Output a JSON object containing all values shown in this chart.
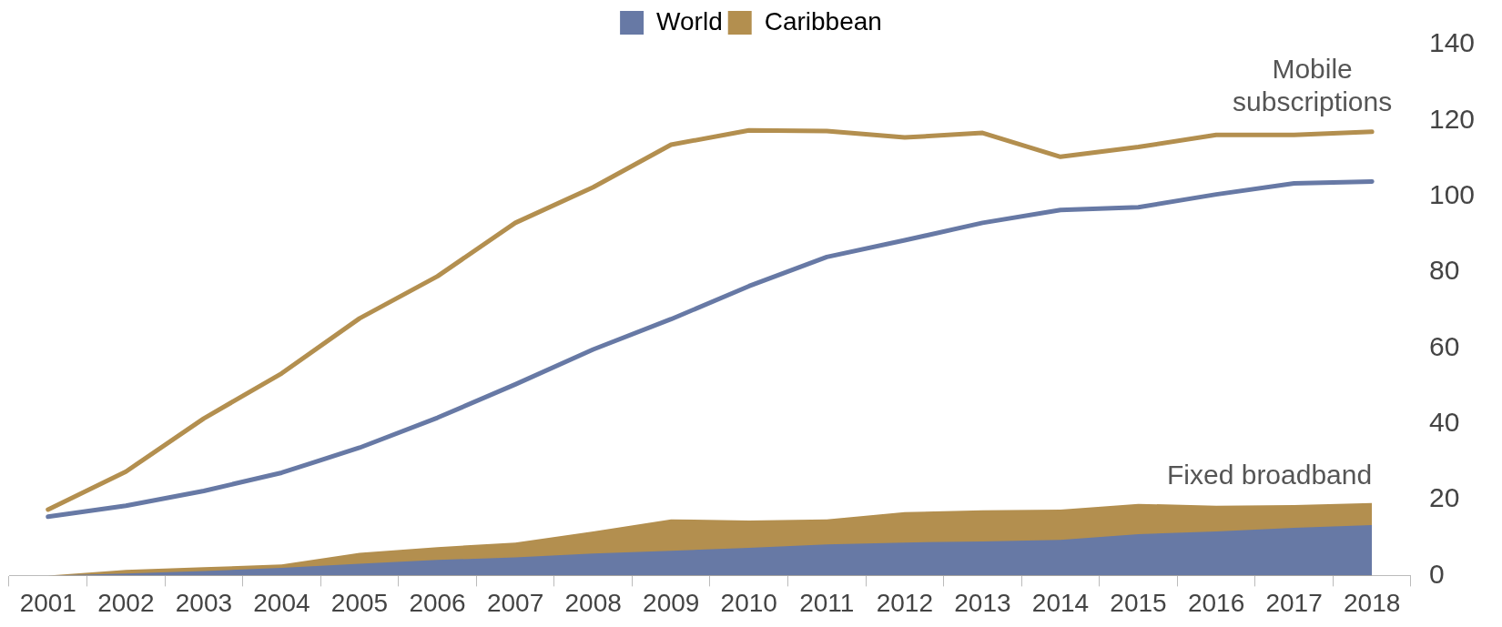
{
  "chart_data": {
    "type": "line",
    "categories": [
      "2001",
      "2002",
      "2003",
      "2004",
      "2005",
      "2006",
      "2007",
      "2008",
      "2009",
      "2010",
      "2011",
      "2012",
      "2013",
      "2014",
      "2015",
      "2016",
      "2017",
      "2018"
    ],
    "series": [
      {
        "name": "World",
        "color": "#6779a5",
        "values": [
          15.5,
          18.4,
          22.3,
          27.1,
          33.7,
          41.6,
          50.4,
          59.6,
          67.6,
          76.3,
          84,
          88.4,
          93,
          96.4,
          97.1,
          100.5,
          103.4,
          103.9
        ]
      },
      {
        "name": "Caribbean",
        "color": "#b38f4f",
        "values": [
          17.4,
          27.4,
          41.4,
          53.3,
          67.8,
          78.9,
          93,
          102.4,
          113.6,
          117.4,
          117.2,
          115.5,
          116.7,
          110.4,
          113,
          116.2,
          116.2,
          117
        ]
      },
      {
        "color": "#6779a5",
        "type": "area",
        "values": [
          0,
          0.5,
          1.2,
          2,
          3.1,
          4.1,
          4.8,
          5.8,
          6.5,
          7.3,
          8.2,
          8.7,
          9,
          9.4,
          10.9,
          11.6,
          12.6,
          13.3
        ]
      },
      {
        "color": "#b38f4f",
        "type": "area",
        "values": [
          0,
          1.5,
          2.2,
          2.9,
          6,
          7.5,
          8.7,
          11.6,
          14.8,
          14.5,
          14.8,
          16.7,
          17.2,
          17.4,
          18.9,
          18.4,
          18.6,
          19.1
        ]
      }
    ],
    "ylim": [
      0,
      140
    ],
    "yticks": [
      0,
      20,
      40,
      60,
      80,
      100,
      120,
      140
    ],
    "grid": false,
    "legend": "top",
    "marker": "none",
    "line_style": "solid",
    "annotations": [
      "Mobile subscriptions",
      "Fixed broadband"
    ]
  }
}
